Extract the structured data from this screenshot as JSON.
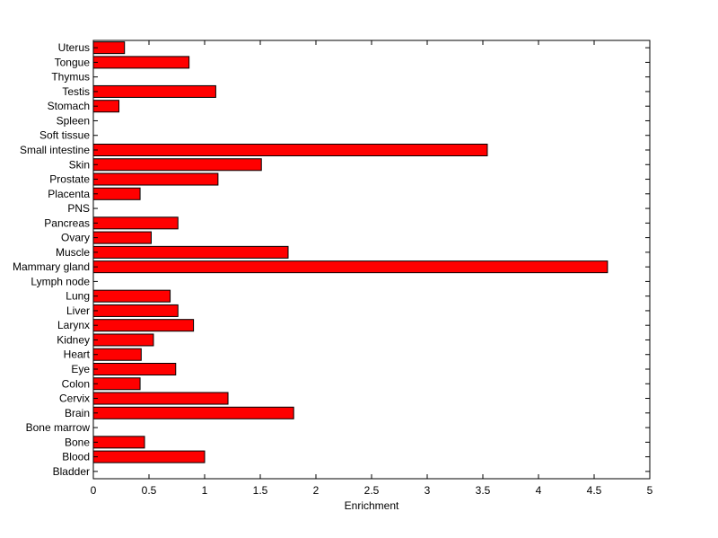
{
  "chart_data": {
    "type": "bar",
    "orientation": "horizontal",
    "categories": [
      "Bladder",
      "Blood",
      "Bone",
      "Bone marrow",
      "Brain",
      "Cervix",
      "Colon",
      "Eye",
      "Heart",
      "Kidney",
      "Larynx",
      "Liver",
      "Lung",
      "Lymph node",
      "Mammary gland",
      "Muscle",
      "Ovary",
      "Pancreas",
      "PNS",
      "Placenta",
      "Prostate",
      "Skin",
      "Small intestine",
      "Soft tissue",
      "Spleen",
      "Stomach",
      "Testis",
      "Thymus",
      "Tongue",
      "Uterus"
    ],
    "values": [
      0,
      1.0,
      0.46,
      0,
      1.8,
      1.21,
      0.42,
      0.74,
      0.43,
      0.54,
      0.9,
      0.76,
      0.69,
      0,
      4.62,
      1.75,
      0.52,
      0.76,
      0,
      0.42,
      1.12,
      1.51,
      3.54,
      0,
      0,
      0.23,
      1.1,
      0,
      0.86,
      0.28
    ],
    "title": "",
    "xlabel": "Enrichment",
    "ylabel": "",
    "xlim": [
      0,
      5
    ],
    "xticks": [
      "0",
      "0.5",
      "1",
      "1.5",
      "2",
      "2.5",
      "3",
      "3.5",
      "4",
      "4.5",
      "5"
    ],
    "bar_color": "#ff0000",
    "edge_color": "#000000",
    "grid": false
  }
}
